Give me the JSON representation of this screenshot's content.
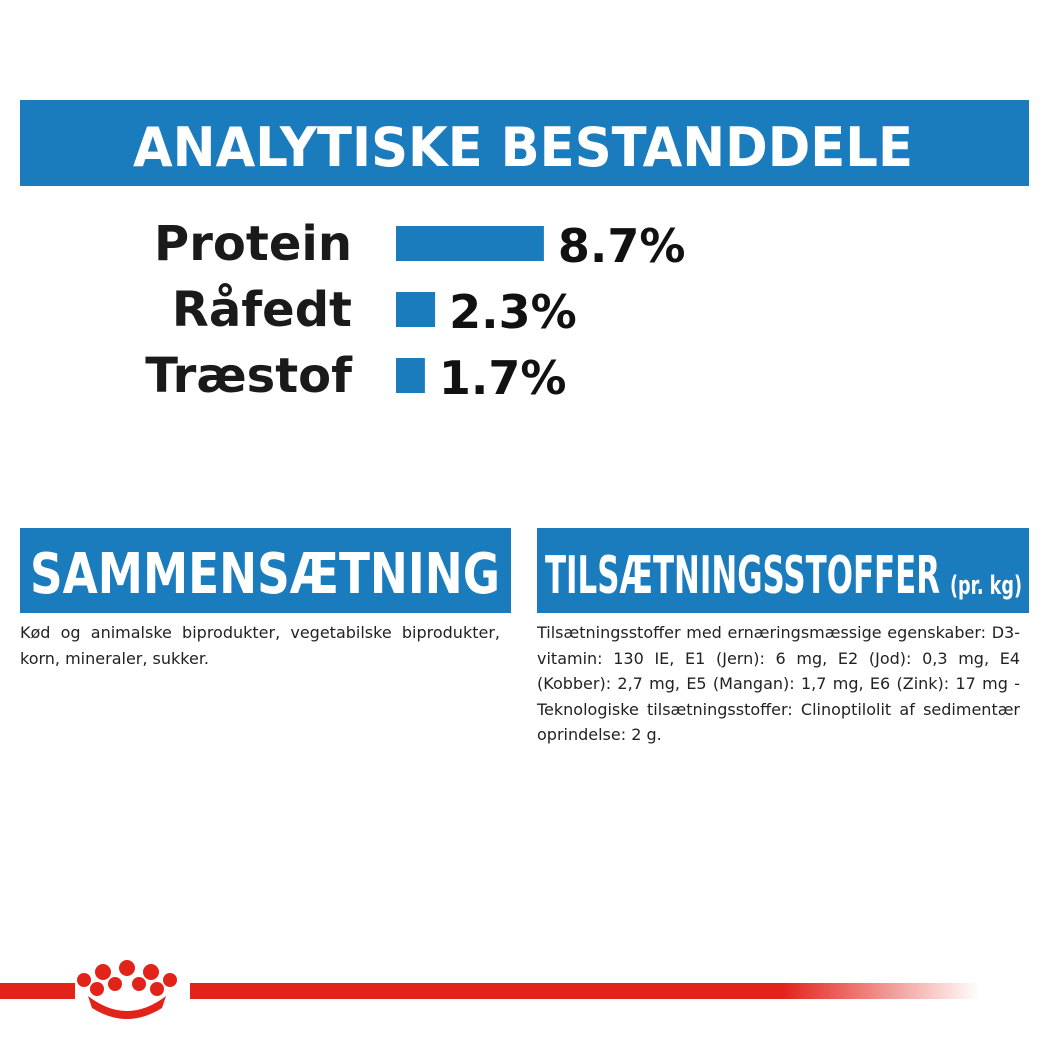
{
  "chart_data": {
    "type": "bar",
    "orientation": "horizontal",
    "title": "ANALYTISKE BESTANDDELE",
    "categories": [
      "Protein",
      "Råfedt",
      "Træstof"
    ],
    "values": [
      8.7,
      2.3,
      1.7
    ],
    "value_labels": [
      "8.7%",
      "2.3%",
      "1.7%"
    ],
    "color": "#1a7bbd"
  },
  "sections": [
    {
      "title": "SAMMENSÆTNING",
      "text": "Kød og animalske biprodukter, vegetabilske biprodukter, korn, mineraler, sukker."
    },
    {
      "title": "TILSÆTNINGSSTOFFER",
      "suffix": "(pr. kg)",
      "text": "Tilsætningsstoffer med ernæringsmæssige egenskaber: D3-vitamin: 130 IE, E1 (Jern): 6 mg, E2 (Jod): 0,3 mg, E4 (Kobber): 2,7 mg, E5 (Mangan): 1,7 mg, E6 (Zink): 17 mg - Teknologiske tilsætningsstoffer: Clinoptilolit af sedimentær oprindelse: 2 g."
    }
  ]
}
